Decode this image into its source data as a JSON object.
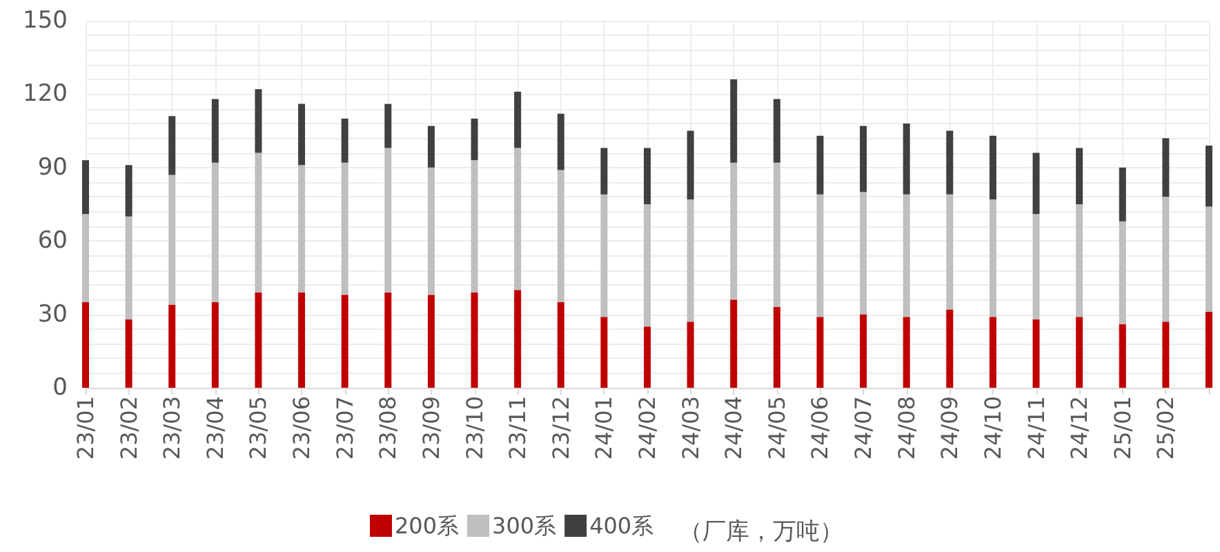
{
  "chart_data": {
    "type": "bar",
    "stacked": true,
    "categories": [
      "23/01",
      "23/02",
      "23/03",
      "23/04",
      "23/05",
      "23/06",
      "23/07",
      "23/08",
      "23/09",
      "23/10",
      "23/11",
      "23/12",
      "24/01",
      "24/02",
      "24/03",
      "24/04",
      "24/05",
      "24/06",
      "24/07",
      "24/08",
      "24/09",
      "24/10",
      "24/11",
      "24/12",
      "25/01",
      "25/02",
      null
    ],
    "series": [
      {
        "name": "200系",
        "color": "#c00000",
        "values": [
          35,
          28,
          34,
          35,
          39,
          39,
          38,
          39,
          38,
          39,
          40,
          35,
          29,
          25,
          27,
          36,
          33,
          29,
          30,
          29,
          32,
          29,
          28,
          29,
          26,
          27,
          31
        ]
      },
      {
        "name": "300系",
        "color": "#bfbfbf",
        "values": [
          36,
          42,
          53,
          57,
          57,
          52,
          54,
          59,
          52,
          54,
          58,
          54,
          50,
          50,
          50,
          56,
          59,
          50,
          50,
          50,
          47,
          48,
          43,
          46,
          42,
          51,
          43
        ]
      },
      {
        "name": "400系",
        "color": "#404040",
        "values": [
          22,
          21,
          24,
          26,
          26,
          25,
          18,
          18,
          17,
          17,
          23,
          23,
          19,
          23,
          28,
          34,
          26,
          24,
          27,
          29,
          26,
          26,
          25,
          23,
          22,
          24,
          25
        ]
      }
    ],
    "ylim": [
      0,
      150
    ],
    "yticks": [
      0,
      {
        "value": 6,
        "label": null
      },
      {
        "value": 12,
        "label": null
      },
      {
        "value": 18,
        "label": null
      },
      {
        "value": 24,
        "label": null
      },
      30,
      {
        "value": 36,
        "label": null
      },
      {
        "value": 42,
        "label": null
      },
      {
        "value": 48,
        "label": null
      },
      {
        "value": 54,
        "label": null
      },
      60,
      {
        "value": 66,
        "label": null
      },
      {
        "value": 72,
        "label": null
      },
      {
        "value": 78,
        "label": null
      },
      {
        "value": 84,
        "label": null
      },
      90,
      {
        "value": 96,
        "label": null
      },
      {
        "value": 102,
        "label": null
      },
      {
        "value": 108,
        "label": null
      },
      {
        "value": 114,
        "label": null
      },
      120,
      {
        "value": 126,
        "label": null
      },
      {
        "value": 132,
        "label": null
      },
      {
        "value": 138,
        "label": null
      },
      {
        "value": 144,
        "label": null
      },
      150
    ],
    "grid": true,
    "legend": "bottom",
    "annotations": [
      "（厂库，万吨）"
    ]
  }
}
